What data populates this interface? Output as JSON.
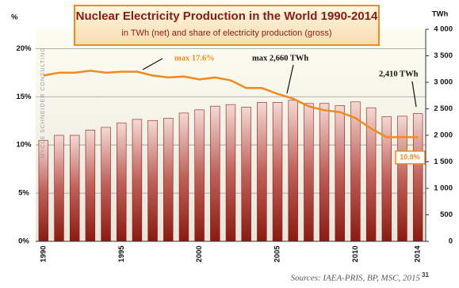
{
  "chart_data": {
    "type": "bar",
    "title": "Nuclear Electricity Production in the World 1990-2014",
    "subtitle": "in TWh (net) and share of electricity production (gross)",
    "y_axis_label": "%",
    "y2_axis_label": "TWh",
    "side_text": "MYCLE SCHNEIDER CONSULTING",
    "source": "Sources: IAEA-PRIS, BP, MSC, 2015",
    "page_number": "31",
    "categories": [
      "1990",
      null,
      null,
      null,
      null,
      "1995",
      null,
      null,
      null,
      null,
      "2000",
      null,
      null,
      null,
      null,
      "2005",
      null,
      null,
      null,
      null,
      "2010",
      null,
      null,
      null,
      "2014"
    ],
    "series": [
      {
        "type": "bar",
        "axis": "y2",
        "color": "#8b1a10",
        "values": [
          1900,
          2000,
          2000,
          2100,
          2150,
          2230,
          2300,
          2280,
          2320,
          2420,
          2480,
          2550,
          2580,
          2530,
          2620,
          2620,
          2660,
          2600,
          2600,
          2560,
          2630,
          2520,
          2350,
          2360,
          2410
        ]
      },
      {
        "type": "line",
        "axis": "y",
        "color": "#f28a1a",
        "values": [
          17.2,
          17.5,
          17.5,
          17.7,
          17.5,
          17.6,
          17.6,
          17.2,
          17.0,
          17.1,
          16.8,
          17.0,
          16.7,
          15.9,
          15.9,
          15.3,
          14.8,
          14.0,
          13.6,
          13.4,
          12.8,
          11.7,
          10.8,
          10.8,
          10.8
        ]
      }
    ],
    "annotations": [
      "max 17.6%",
      "max 2,660 TWh",
      "2,410 TWh",
      "10.8%"
    ],
    "ylim": [
      0,
      22
    ],
    "yticks": [
      {
        "value": 0,
        "label": "0%"
      },
      {
        "value": 5,
        "label": "5%"
      },
      {
        "value": 10,
        "label": "10%"
      },
      {
        "value": 15,
        "label": "15%"
      },
      {
        "value": 20,
        "label": "20%"
      }
    ],
    "y2lim": [
      0,
      4000
    ],
    "y2ticks": [
      0,
      500,
      {
        "value": 1000,
        "label": "1 000"
      },
      {
        "value": 1500,
        "label": "1 500"
      },
      {
        "value": 2000,
        "label": "2 000"
      },
      {
        "value": 2500,
        "label": "2 500"
      },
      {
        "value": 3000,
        "label": "3 000"
      },
      {
        "value": 3500,
        "label": "3 500"
      },
      {
        "value": 4000,
        "label": "4 000"
      }
    ],
    "grid": true
  }
}
